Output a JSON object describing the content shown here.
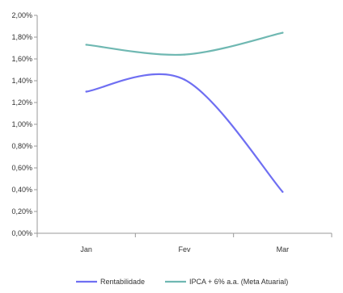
{
  "chart_data": {
    "type": "line",
    "categories": [
      "Jan",
      "Fev",
      "Mar"
    ],
    "series": [
      {
        "name": "Rentabilidade",
        "values": [
          1.3,
          1.41,
          0.38
        ],
        "color": "#6f6ff2"
      },
      {
        "name": "IPCA + 6% a.a. (Meta Atuarial)",
        "values": [
          1.73,
          1.64,
          1.84
        ],
        "color": "#6fb8b2"
      }
    ],
    "y_ticks": [
      "0,00%",
      "0,20%",
      "0,40%",
      "0,60%",
      "0,80%",
      "1,00%",
      "1,20%",
      "1,40%",
      "1,60%",
      "1,80%",
      "2,00%"
    ],
    "ylim": [
      0,
      2.0
    ],
    "grid": false,
    "legend_position": "bottom"
  }
}
